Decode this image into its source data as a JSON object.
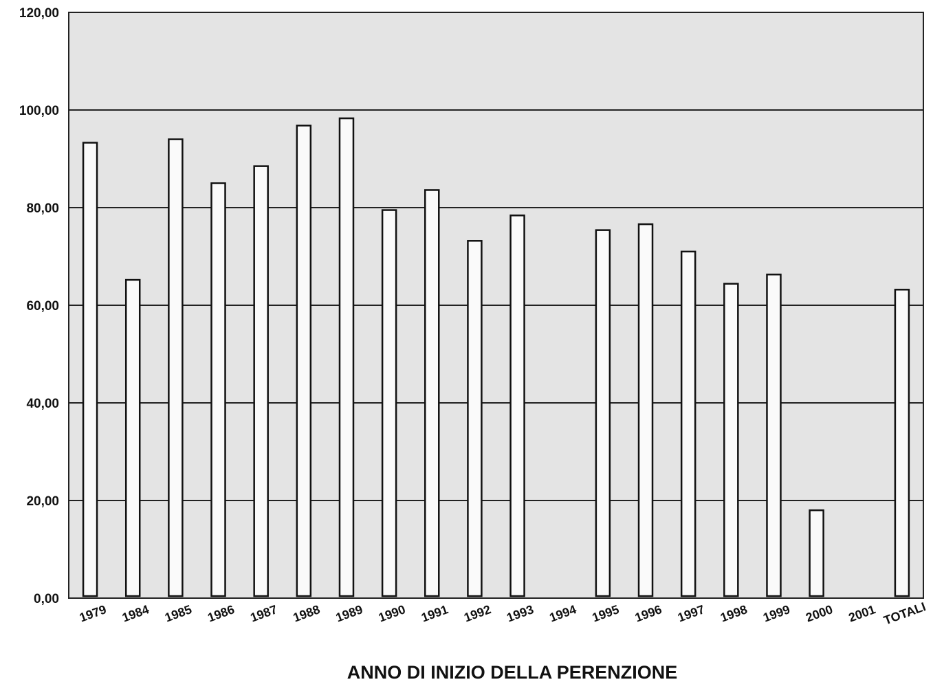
{
  "chart_data": {
    "type": "bar",
    "title": "",
    "xlabel": "ANNO DI INIZIO DELLA PERENZIONE",
    "ylabel": "",
    "ylim": [
      0,
      120
    ],
    "yticks": [
      "0,00",
      "20,00",
      "40,00",
      "60,00",
      "80,00",
      "100,00",
      "120,00"
    ],
    "grid": true,
    "categories": [
      "1979",
      "1984",
      "1985",
      "1986",
      "1987",
      "1988",
      "1989",
      "1990",
      "1991",
      "1992",
      "1993",
      "1994",
      "1995",
      "1996",
      "1997",
      "1998",
      "1999",
      "2000",
      "2001",
      "TOTALI"
    ],
    "values": [
      93.3,
      65.2,
      94.0,
      85.0,
      88.5,
      96.8,
      98.3,
      79.5,
      83.6,
      73.2,
      78.4,
      null,
      75.4,
      76.6,
      71.0,
      64.4,
      66.3,
      18.0,
      null,
      63.2
    ],
    "colors": {
      "plot_background": "#e4e4e4",
      "bar_fill": "#fafafa",
      "bar_stroke": "#111111",
      "grid": "#222222"
    }
  }
}
